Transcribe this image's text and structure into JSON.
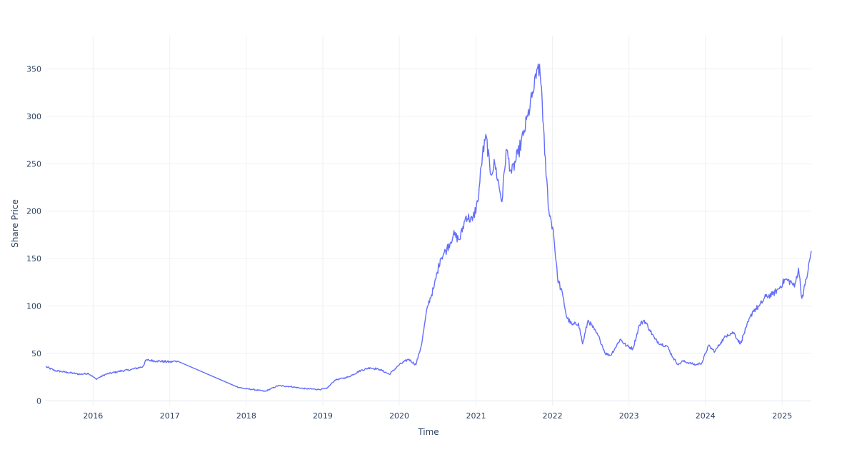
{
  "colors": {
    "series": "#636efa",
    "text": "#2a3f5f",
    "grid": "#eef0f4",
    "background": "#ffffff"
  },
  "chart_data": {
    "type": "line",
    "title": "",
    "xlabel": "Time",
    "ylabel": "Share Price",
    "grid": true,
    "legend": "none",
    "xlim": [
      "2015-05-20",
      "2025-05-20"
    ],
    "ylim": [
      -5,
      385
    ],
    "xticks": [
      "2016",
      "2017",
      "2018",
      "2019",
      "2020",
      "2021",
      "2022",
      "2023",
      "2024",
      "2025"
    ],
    "yticks": [
      0,
      50,
      100,
      150,
      200,
      250,
      300,
      350
    ],
    "series": [
      {
        "x": [
          "2015-05-20",
          "2015-07-01",
          "2015-09-01",
          "2015-11-01",
          "2015-12-10",
          "2016-01-15",
          "2016-03-01",
          "2016-05-01",
          "2016-07-01",
          "2016-08-25",
          "2016-09-10",
          "2016-11-01",
          "2017-01-01",
          "2017-02-05",
          "2017-11-15",
          "2017-12-20",
          "2018-02-01",
          "2018-04-01",
          "2018-06-01",
          "2018-08-01",
          "2018-10-01",
          "2018-12-15",
          "2019-01-20",
          "2019-03-01",
          "2019-05-01",
          "2019-07-01",
          "2019-08-15",
          "2019-10-01",
          "2019-11-15",
          "2020-01-01",
          "2020-02-15",
          "2020-03-20",
          "2020-04-15",
          "2020-05-15",
          "2020-06-15",
          "2020-07-15",
          "2020-08-15",
          "2020-09-15",
          "2020-10-15",
          "2020-11-15",
          "2020-12-15",
          "2021-01-10",
          "2021-02-01",
          "2021-02-20",
          "2021-03-10",
          "2021-04-01",
          "2021-05-05",
          "2021-05-25",
          "2021-06-20",
          "2021-07-20",
          "2021-08-15",
          "2021-09-05",
          "2021-09-25",
          "2021-10-15",
          "2021-10-25",
          "2021-11-10",
          "2021-11-25",
          "2021-12-15",
          "2022-01-05",
          "2022-01-25",
          "2022-02-20",
          "2022-03-10",
          "2022-04-05",
          "2022-05-05",
          "2022-05-25",
          "2022-06-20",
          "2022-07-20",
          "2022-08-15",
          "2022-09-10",
          "2022-10-05",
          "2022-10-25",
          "2022-11-20",
          "2022-12-20",
          "2023-01-20",
          "2023-02-20",
          "2023-03-15",
          "2023-04-10",
          "2023-05-05",
          "2023-06-01",
          "2023-07-01",
          "2023-08-01",
          "2023-08-25",
          "2023-09-15",
          "2023-10-15",
          "2023-11-15",
          "2023-12-15",
          "2024-01-15",
          "2024-02-15",
          "2024-03-15",
          "2024-04-15",
          "2024-05-15",
          "2024-06-15",
          "2024-07-15",
          "2024-08-15",
          "2024-09-15",
          "2024-10-15",
          "2024-11-15",
          "2024-12-15",
          "2025-01-15",
          "2025-02-15",
          "2025-03-01",
          "2025-03-20",
          "2025-04-05",
          "2025-04-20",
          "2025-05-05",
          "2025-05-20"
        ],
        "y": [
          36,
          32,
          30,
          28,
          29,
          23,
          28,
          31,
          33,
          36,
          43,
          42,
          41,
          42,
          15,
          13,
          12,
          10,
          16,
          15,
          13,
          12,
          13,
          22,
          25,
          32,
          35,
          33,
          28,
          38,
          44,
          38,
          58,
          100,
          120,
          150,
          160,
          175,
          170,
          195,
          190,
          210,
          260,
          278,
          240,
          250,
          210,
          265,
          240,
          260,
          280,
          300,
          320,
          340,
          355,
          330,
          260,
          200,
          180,
          130,
          110,
          88,
          80,
          82,
          60,
          85,
          75,
          65,
          50,
          48,
          55,
          65,
          58,
          55,
          80,
          85,
          75,
          65,
          60,
          58,
          45,
          38,
          42,
          40,
          38,
          40,
          58,
          52,
          62,
          70,
          72,
          60,
          78,
          95,
          100,
          110,
          112,
          118,
          128,
          125,
          120,
          140,
          108,
          122,
          138,
          158
        ]
      }
    ]
  }
}
